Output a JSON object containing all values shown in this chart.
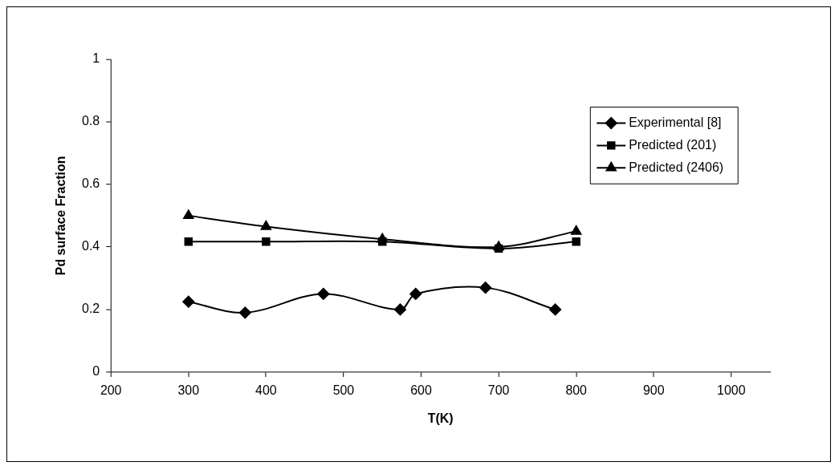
{
  "chart_data": {
    "type": "line",
    "xlabel": "T(K)",
    "ylabel": "Pd surface Fraction",
    "xlim": [
      200,
      1050
    ],
    "xticks": [
      200,
      300,
      400,
      500,
      600,
      700,
      800,
      900,
      1000
    ],
    "ylim": [
      0,
      1
    ],
    "yticks": [
      0,
      0.2,
      0.4,
      0.6,
      0.8,
      1
    ],
    "grid": false,
    "legend": "top right",
    "series": [
      {
        "name": "Experimental [8]",
        "color": "#000000",
        "marker": "diamond",
        "x": [
          300,
          373,
          474,
          573,
          593,
          683,
          773
        ],
        "values": [
          0.225,
          0.19,
          0.25,
          0.2,
          0.25,
          0.27,
          0.2
        ]
      },
      {
        "name": "Predicted (201)",
        "color": "#000000",
        "marker": "square",
        "x": [
          300,
          400,
          550,
          700,
          800
        ],
        "values": [
          0.417,
          0.417,
          0.417,
          0.395,
          0.417
        ]
      },
      {
        "name": "Predicted (2406)",
        "color": "#000000",
        "marker": "triangle",
        "x": [
          300,
          400,
          550,
          700,
          800
        ],
        "values": [
          0.5,
          0.465,
          0.425,
          0.4,
          0.45
        ]
      }
    ]
  }
}
